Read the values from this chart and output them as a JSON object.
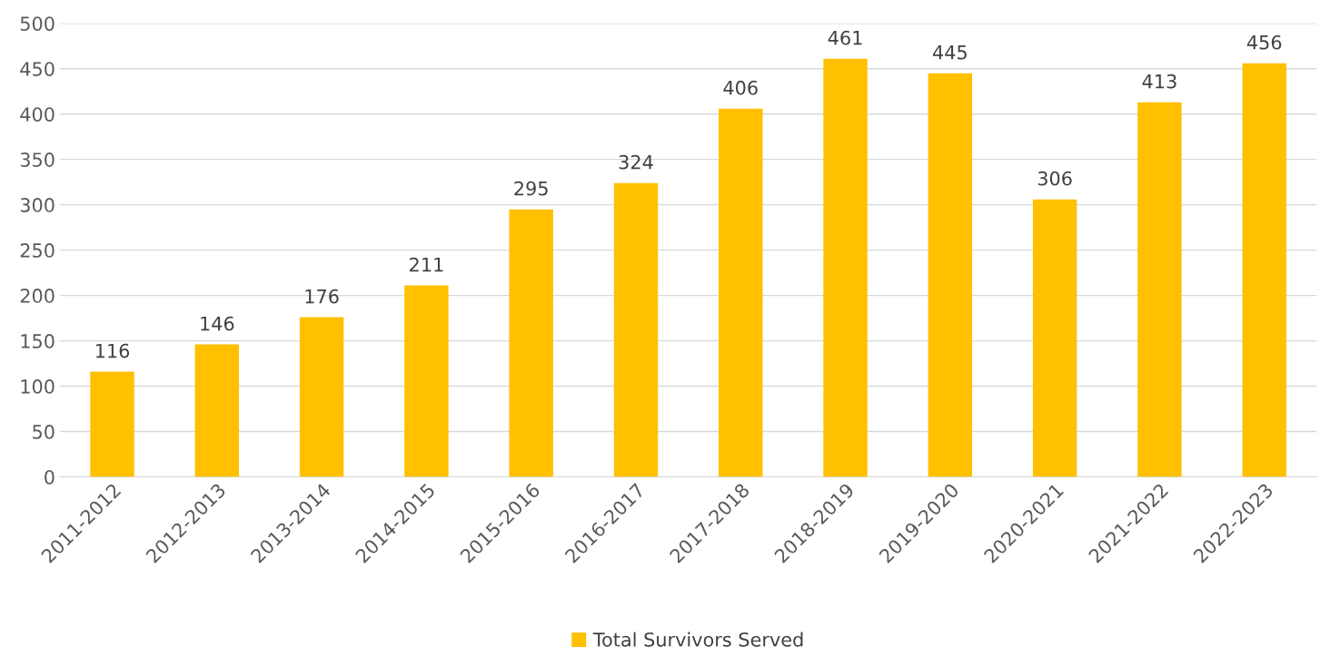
{
  "chart_data": {
    "type": "bar",
    "categories": [
      "2011-2012",
      "2012-2013",
      "2013-2014",
      "2014-2015",
      "2015-2016",
      "2016-2017",
      "2017-2018",
      "2018-2019",
      "2019-2020",
      "2020-2021",
      "2021-2022",
      "2022-2023"
    ],
    "series": [
      {
        "name": "Total Survivors Served",
        "color": "#ffc000",
        "values": [
          116,
          146,
          176,
          211,
          295,
          324,
          406,
          461,
          445,
          306,
          413,
          456
        ]
      }
    ],
    "ylim": [
      0,
      500
    ],
    "yticks": [
      0,
      50,
      100,
      150,
      200,
      250,
      300,
      350,
      400,
      450,
      500
    ],
    "grid": "y",
    "legend": "bottom",
    "data_labels": true
  }
}
